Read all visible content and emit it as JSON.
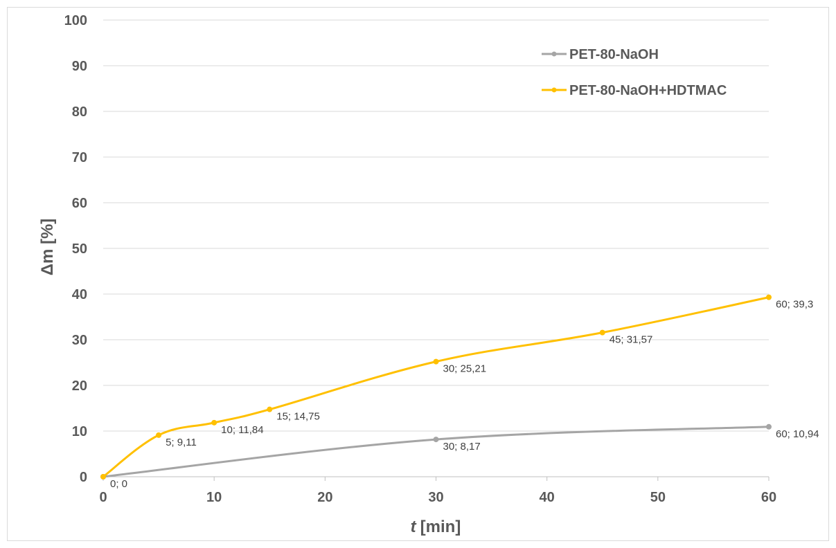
{
  "chart_data": {
    "type": "line",
    "xlabel_italic": "t",
    "xlabel_unit": "[min]",
    "ylabel": "Δm [%]",
    "xlim": [
      0,
      60
    ],
    "ylim": [
      0,
      100
    ],
    "x_ticks": [
      0,
      10,
      20,
      30,
      40,
      50,
      60
    ],
    "y_ticks": [
      0,
      10,
      20,
      30,
      40,
      50,
      60,
      70,
      80,
      90,
      100
    ],
    "grid": "horizontal",
    "legend_position": "top-right",
    "series": [
      {
        "name": "PET-80-NaOH",
        "color": "#a5a5a5",
        "points": [
          {
            "x": 0,
            "y": 0,
            "label": "0; 0"
          },
          {
            "x": 30,
            "y": 8.17,
            "label": "30; 8,17"
          },
          {
            "x": 60,
            "y": 10.94,
            "label": "60; 10,94"
          }
        ]
      },
      {
        "name": "PET-80-NaOH+HDTMAC",
        "color": "#ffc000",
        "points": [
          {
            "x": 0,
            "y": 0,
            "label": ""
          },
          {
            "x": 5,
            "y": 9.11,
            "label": "5; 9,11"
          },
          {
            "x": 10,
            "y": 11.84,
            "label": "10; 11,84"
          },
          {
            "x": 15,
            "y": 14.75,
            "label": "15; 14,75"
          },
          {
            "x": 30,
            "y": 25.21,
            "label": "30; 25,21"
          },
          {
            "x": 45,
            "y": 31.57,
            "label": "45; 31,57"
          },
          {
            "x": 60,
            "y": 39.3,
            "label": "60; 39,3"
          }
        ]
      }
    ]
  }
}
